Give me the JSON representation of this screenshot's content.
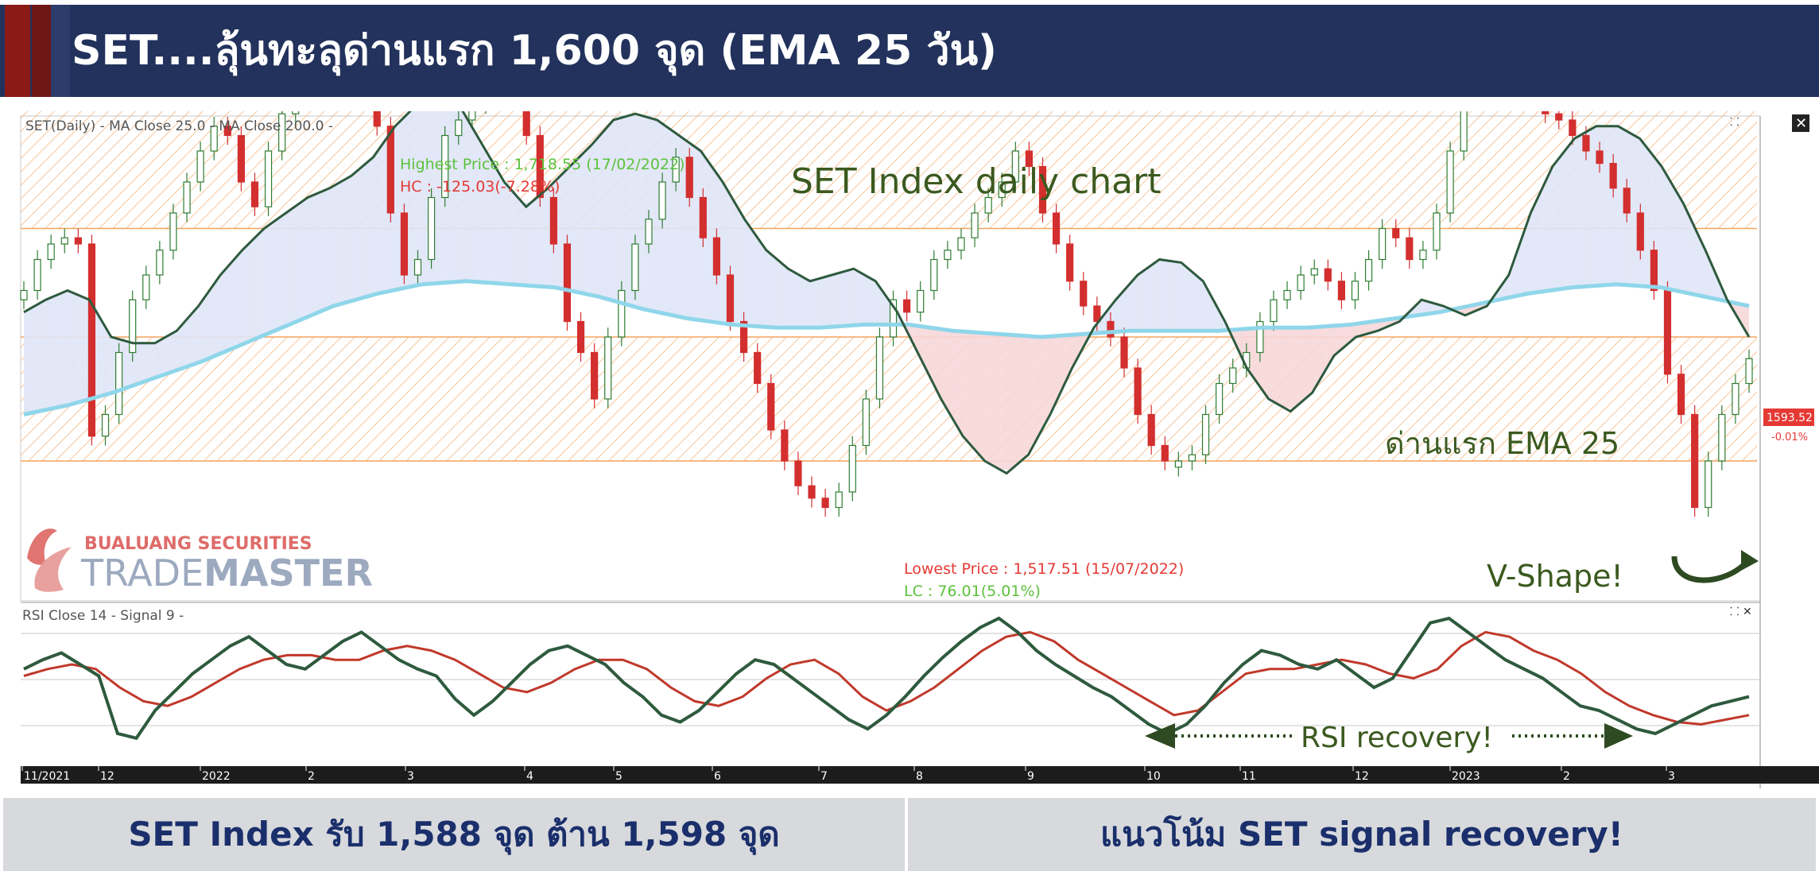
{
  "header": {
    "title": "SET....ลุ้นทะลุด่านแรก 1,600 จุด (EMA 25 วัน)"
  },
  "colors": {
    "header_bg": "#22325c",
    "accent_red": "#8b1a17",
    "candle_up": "#2e7d32",
    "candle_down": "#d32f2f",
    "ema25": "#2e5a3e",
    "ma200": "#8fd6ea",
    "rsi": "#2e5a3e",
    "rsi_signal": "#c0392b",
    "zone_hatch": "#f4a460"
  },
  "chart_data": [
    {
      "type": "line",
      "title": "SET Index daily chart",
      "legend": "SET(Daily) - MA  Close 25.0 - MA  Close 200.0 -",
      "x_ticks": [
        "11/2021",
        "12",
        "2022",
        "2",
        "3",
        "4",
        "5",
        "6",
        "7",
        "8",
        "9",
        "10",
        "11",
        "12",
        "2023",
        "2",
        "3"
      ],
      "ylim": [
        1500,
        1730
      ],
      "series": [
        {
          "name": "SET",
          "style": "candlestick",
          "values": [
            1615,
            1625,
            1630,
            1632,
            1630,
            1568,
            1575,
            1595,
            1612,
            1620,
            1628,
            1640,
            1650,
            1660,
            1668,
            1665,
            1650,
            1642,
            1660,
            1672,
            1690,
            1700,
            1712,
            1695,
            1690,
            1680,
            1668,
            1640,
            1620,
            1625,
            1645,
            1665,
            1670,
            1675,
            1685,
            1690,
            1680,
            1665,
            1645,
            1630,
            1605,
            1595,
            1580,
            1600,
            1615,
            1630,
            1638,
            1650,
            1658,
            1645,
            1632,
            1620,
            1605,
            1595,
            1585,
            1570,
            1560,
            1552,
            1548,
            1545,
            1550,
            1565,
            1580,
            1600,
            1612,
            1608,
            1615,
            1625,
            1628,
            1632,
            1640,
            1645,
            1650,
            1660,
            1655,
            1640,
            1630,
            1618,
            1610,
            1605,
            1600,
            1590,
            1575,
            1565,
            1560,
            1560,
            1562,
            1575,
            1585,
            1590,
            1595,
            1605,
            1612,
            1615,
            1620,
            1622,
            1618,
            1612,
            1618,
            1625,
            1635,
            1632,
            1625,
            1628,
            1640,
            1660,
            1680,
            1682,
            1685,
            1683,
            1680,
            1685,
            1672,
            1670,
            1665,
            1660,
            1656,
            1648,
            1640,
            1628,
            1615,
            1588,
            1575,
            1545,
            1560,
            1575,
            1585,
            1593
          ]
        },
        {
          "name": "EMA 25",
          "values": [
            1608,
            1612,
            1615,
            1612,
            1600,
            1598,
            1598,
            1602,
            1610,
            1620,
            1628,
            1635,
            1640,
            1645,
            1648,
            1652,
            1658,
            1668,
            1675,
            1678,
            1674,
            1662,
            1650,
            1642,
            1648,
            1655,
            1662,
            1670,
            1672,
            1670,
            1665,
            1660,
            1650,
            1638,
            1628,
            1622,
            1618,
            1620,
            1622,
            1618,
            1608,
            1594,
            1580,
            1568,
            1560,
            1556,
            1562,
            1575,
            1590,
            1603,
            1612,
            1620,
            1625,
            1624,
            1618,
            1605,
            1590,
            1580,
            1576,
            1582,
            1594,
            1600,
            1602,
            1605,
            1612,
            1610,
            1607,
            1610,
            1620,
            1640,
            1655,
            1664,
            1668,
            1668,
            1664,
            1655,
            1643,
            1628,
            1612,
            1600
          ]
        },
        {
          "name": "EMA 200",
          "values": [
            1575,
            1578,
            1582,
            1587,
            1592,
            1598,
            1604,
            1610,
            1614,
            1617,
            1618,
            1617,
            1616,
            1613,
            1609,
            1606,
            1604,
            1603,
            1603,
            1604,
            1604,
            1602,
            1601,
            1600,
            1601,
            1602,
            1602,
            1602,
            1603,
            1603,
            1604,
            1606,
            1608,
            1611,
            1614,
            1616,
            1617,
            1616,
            1613,
            1610
          ]
        }
      ],
      "zones": [
        {
          "from": 1635,
          "to": 1675
        },
        {
          "from": 1560,
          "to": 1600
        }
      ],
      "annotations": {
        "highest_price": "Highest Price : 1,718.55 (17/02/2022)",
        "hc": "HC : -125.03(-7.28%)",
        "lowest_price": "Lowest Price : 1,517.51 (15/07/2022)",
        "lc": "LC : 76.01(5.01%)",
        "ema_label": "ด่านแรก EMA 25",
        "v_shape": "V-Shape!",
        "last_price": "1593.52",
        "last_change": "-0.01%"
      }
    },
    {
      "type": "line",
      "title": "RSI",
      "legend": "RSI  Close 14 - Signal  9 -",
      "ylim": [
        0,
        100
      ],
      "series": [
        {
          "name": "RSI",
          "values": [
            58,
            62,
            65,
            60,
            55,
            30,
            28,
            40,
            48,
            56,
            62,
            68,
            72,
            66,
            60,
            58,
            64,
            70,
            74,
            68,
            62,
            58,
            55,
            45,
            38,
            44,
            52,
            60,
            66,
            68,
            64,
            60,
            52,
            46,
            38,
            35,
            40,
            48,
            56,
            62,
            60,
            54,
            48,
            42,
            36,
            32,
            38,
            46,
            55,
            63,
            70,
            76,
            80,
            74,
            66,
            60,
            55,
            50,
            46,
            40,
            34,
            30,
            34,
            42,
            52,
            60,
            66,
            64,
            60,
            58,
            62,
            56,
            50,
            54,
            66,
            78,
            80,
            74,
            68,
            62,
            58,
            54,
            48,
            42,
            40,
            36,
            32,
            30,
            34,
            38,
            42,
            44,
            46
          ]
        },
        {
          "name": "Signal",
          "values": [
            55,
            58,
            60,
            58,
            50,
            44,
            42,
            46,
            52,
            58,
            62,
            64,
            64,
            62,
            62,
            66,
            68,
            66,
            62,
            56,
            50,
            48,
            52,
            58,
            62,
            62,
            58,
            50,
            44,
            42,
            46,
            54,
            60,
            62,
            56,
            46,
            40,
            44,
            50,
            58,
            66,
            72,
            74,
            70,
            62,
            56,
            50,
            44,
            38,
            40,
            48,
            56,
            58,
            58,
            60,
            62,
            60,
            56,
            54,
            58,
            68,
            74,
            72,
            66,
            62,
            56,
            48,
            42,
            38,
            35,
            34,
            36,
            38
          ]
        }
      ],
      "annotations": {
        "rsi_recovery": "RSI recovery!"
      }
    }
  ],
  "watermark": {
    "line1": "BUALUANG SECURITIES",
    "line2a": "TRADE",
    "line2b": "MASTER"
  },
  "footer": {
    "left": "SET Index รับ 1,588 จุด ต้าน 1,598 จุด",
    "right": "แนวโน้ม SET signal recovery!"
  }
}
